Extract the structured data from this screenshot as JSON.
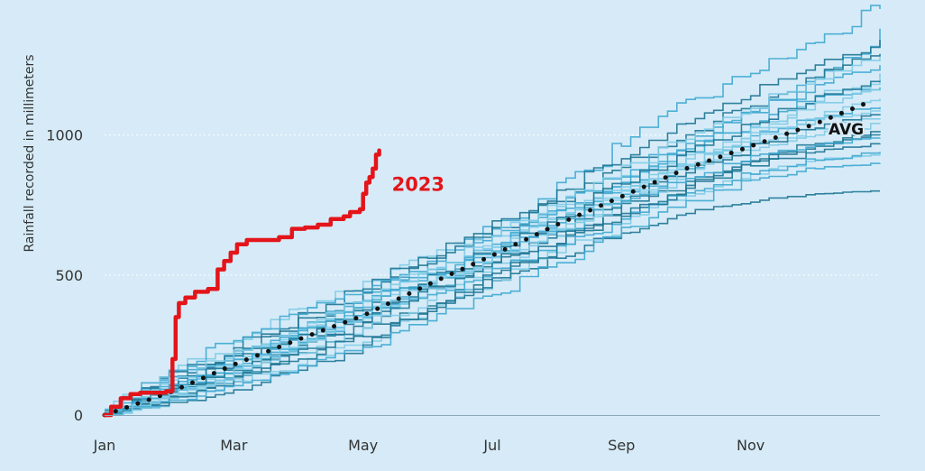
{
  "chart_data": {
    "type": "line",
    "title": "",
    "xlabel": "",
    "ylabel": "Rainfall recorded in millimeters",
    "x_ticks": [
      "Jan",
      "Mar",
      "May",
      "Jul",
      "Sep",
      "Nov"
    ],
    "x_tick_months": [
      0,
      2,
      4,
      6,
      8,
      10
    ],
    "xlim": [
      0,
      12
    ],
    "y_ticks": [
      "0",
      "500",
      "1000"
    ],
    "y_tick_values": [
      0,
      500,
      1000
    ],
    "ylim": [
      0,
      1450
    ],
    "grid": true,
    "colors": {
      "background": "#d6ebf7",
      "historical_light": "#7fcbe6",
      "historical_mid": "#3fa9d0",
      "historical_dark": "#1e7693",
      "series_2023": "#e3151a",
      "avg": "#111111"
    },
    "series": [
      {
        "name": "2023",
        "x": [
          0,
          0.1,
          0.25,
          0.4,
          0.55,
          0.75,
          0.95,
          1.05,
          1.1,
          1.15,
          1.25,
          1.4,
          1.6,
          1.75,
          1.85,
          1.95,
          2.05,
          2.2,
          2.5,
          2.7,
          2.9,
          3.1,
          3.3,
          3.5,
          3.7,
          3.8,
          3.95,
          4.0,
          4.05,
          4.1,
          4.15,
          4.2,
          4.25
        ],
        "values": [
          0,
          30,
          60,
          75,
          80,
          80,
          85,
          200,
          350,
          400,
          420,
          440,
          450,
          520,
          550,
          580,
          610,
          625,
          625,
          635,
          665,
          670,
          680,
          700,
          710,
          725,
          735,
          790,
          830,
          850,
          880,
          930,
          945
        ]
      },
      {
        "name": "AVG",
        "x": [
          0,
          1,
          2,
          3,
          4,
          5,
          6,
          7,
          8,
          9,
          10,
          11,
          11.8
        ],
        "values": [
          0,
          80,
          180,
          270,
          355,
          465,
          570,
          680,
          780,
          880,
          960,
          1040,
          1115
        ]
      }
    ],
    "historical_series": [
      {
        "x": [
          0,
          1,
          2,
          3,
          4,
          5,
          6,
          7,
          8,
          9,
          10,
          11,
          12
        ],
        "values": [
          0,
          60,
          120,
          210,
          290,
          390,
          480,
          560,
          650,
          720,
          760,
          790,
          800
        ]
      },
      {
        "x": [
          0,
          1,
          2,
          3,
          4,
          5,
          6,
          7,
          8,
          9,
          10,
          11,
          12
        ],
        "values": [
          0,
          110,
          190,
          310,
          420,
          520,
          660,
          810,
          960,
          1100,
          1220,
          1330,
          1450
        ]
      },
      {
        "x": [
          0,
          1,
          2,
          3,
          4,
          5,
          6,
          7,
          8,
          9,
          10,
          11,
          12
        ],
        "values": [
          0,
          150,
          250,
          380,
          470,
          560,
          640,
          730,
          830,
          930,
          1030,
          1120,
          1220
        ]
      },
      {
        "x": [
          0,
          1,
          2,
          3,
          4,
          5,
          6,
          7,
          8,
          9,
          10,
          11,
          12
        ],
        "values": [
          0,
          70,
          140,
          230,
          330,
          440,
          540,
          640,
          740,
          820,
          890,
          940,
          970
        ]
      },
      {
        "x": [
          0,
          1,
          2,
          3,
          4,
          5,
          6,
          7,
          8,
          9,
          10,
          11,
          12
        ],
        "values": [
          0,
          90,
          170,
          240,
          340,
          460,
          580,
          700,
          830,
          950,
          1070,
          1200,
          1380
        ]
      },
      {
        "x": [
          0,
          1,
          2,
          3,
          4,
          5,
          6,
          7,
          8,
          9,
          10,
          11,
          12
        ],
        "values": [
          0,
          50,
          110,
          180,
          260,
          360,
          470,
          580,
          680,
          780,
          860,
          910,
          930
        ]
      },
      {
        "x": [
          0,
          1,
          2,
          3,
          4,
          5,
          6,
          7,
          8,
          9,
          10,
          11,
          12
        ],
        "values": [
          0,
          130,
          230,
          330,
          430,
          540,
          640,
          760,
          880,
          990,
          1100,
          1200,
          1290
        ]
      },
      {
        "x": [
          0,
          1,
          2,
          3,
          4,
          5,
          6,
          7,
          8,
          9,
          10,
          11,
          12
        ],
        "values": [
          0,
          80,
          150,
          250,
          360,
          470,
          560,
          660,
          770,
          880,
          980,
          1060,
          1100
        ]
      },
      {
        "x": [
          0,
          1,
          2,
          3,
          4,
          5,
          6,
          7,
          8,
          9,
          10,
          11,
          12
        ],
        "values": [
          0,
          100,
          200,
          290,
          370,
          450,
          550,
          660,
          780,
          880,
          960,
          1020,
          1060
        ]
      },
      {
        "x": [
          0,
          1,
          2,
          3,
          4,
          5,
          6,
          7,
          8,
          9,
          10,
          11,
          12
        ],
        "values": [
          0,
          40,
          90,
          160,
          250,
          370,
          490,
          610,
          720,
          820,
          900,
          960,
          1000
        ]
      },
      {
        "x": [
          0,
          1,
          2,
          3,
          4,
          5,
          6,
          7,
          8,
          9,
          10,
          11,
          12
        ],
        "values": [
          0,
          120,
          220,
          310,
          400,
          500,
          610,
          720,
          830,
          940,
          1040,
          1130,
          1170
        ]
      },
      {
        "x": [
          0,
          1,
          2,
          3,
          4,
          5,
          6,
          7,
          8,
          9,
          10,
          11,
          12
        ],
        "values": [
          0,
          60,
          130,
          220,
          310,
          410,
          520,
          640,
          760,
          860,
          940,
          1000,
          1040
        ]
      },
      {
        "x": [
          0,
          1,
          2,
          3,
          4,
          5,
          6,
          7,
          8,
          9,
          10,
          11,
          12
        ],
        "values": [
          0,
          140,
          240,
          340,
          450,
          560,
          670,
          790,
          910,
          1030,
          1140,
          1250,
          1340
        ]
      },
      {
        "x": [
          0,
          1,
          2,
          3,
          4,
          5,
          6,
          7,
          8,
          9,
          10,
          11,
          12
        ],
        "values": [
          0,
          70,
          160,
          260,
          350,
          430,
          510,
          600,
          700,
          790,
          860,
          910,
          940
        ]
      },
      {
        "x": [
          0,
          1,
          2,
          3,
          4,
          5,
          6,
          7,
          8,
          9,
          10,
          11,
          12
        ],
        "values": [
          0,
          90,
          180,
          280,
          390,
          500,
          600,
          700,
          800,
          890,
          980,
          1060,
          1130
        ]
      },
      {
        "x": [
          0,
          1,
          2,
          3,
          4,
          5,
          6,
          7,
          8,
          9,
          10,
          11,
          12
        ],
        "values": [
          0,
          55,
          120,
          200,
          280,
          380,
          490,
          600,
          710,
          810,
          900,
          970,
          1010
        ]
      },
      {
        "x": [
          0,
          1,
          2,
          3,
          4,
          5,
          6,
          7,
          8,
          9,
          10,
          11,
          12
        ],
        "values": [
          0,
          160,
          260,
          360,
          440,
          520,
          620,
          730,
          850,
          970,
          1080,
          1180,
          1250
        ]
      },
      {
        "x": [
          0,
          1,
          2,
          3,
          4,
          5,
          6,
          7,
          8,
          9,
          10,
          11,
          12
        ],
        "values": [
          0,
          75,
          165,
          255,
          345,
          455,
          575,
          695,
          815,
          915,
          995,
          1055,
          1090
        ]
      },
      {
        "x": [
          0,
          1,
          2,
          3,
          4,
          5,
          6,
          7,
          8,
          9,
          10,
          11,
          12
        ],
        "values": [
          0,
          105,
          195,
          275,
          365,
          475,
          585,
          705,
          825,
          935,
          1035,
          1125,
          1190
        ]
      },
      {
        "x": [
          0,
          1,
          2,
          3,
          4,
          5,
          6,
          7,
          8,
          9,
          10,
          11,
          12
        ],
        "values": [
          0,
          45,
          100,
          170,
          240,
          330,
          430,
          540,
          650,
          750,
          830,
          880,
          900
        ]
      },
      {
        "x": [
          0,
          1,
          2,
          3,
          4,
          5,
          6,
          7,
          8,
          9,
          10,
          11,
          12
        ],
        "values": [
          0,
          125,
          215,
          305,
          405,
          515,
          625,
          745,
          865,
          985,
          1095,
          1195,
          1280
        ]
      },
      {
        "x": [
          0,
          1,
          2,
          3,
          4,
          5,
          6,
          7,
          8,
          9,
          10,
          11,
          12
        ],
        "values": [
          0,
          85,
          155,
          235,
          325,
          435,
          545,
          655,
          765,
          865,
          955,
          1025,
          1070
        ]
      },
      {
        "x": [
          0,
          1,
          2,
          3,
          4,
          5,
          6,
          7,
          8,
          9,
          10,
          11,
          12
        ],
        "values": [
          0,
          95,
          185,
          285,
          385,
          485,
          585,
          675,
          765,
          845,
          915,
          965,
          990
        ]
      },
      {
        "x": [
          0,
          1,
          2,
          3,
          4,
          5,
          6,
          7,
          8,
          9,
          10,
          11,
          12
        ],
        "values": [
          0,
          65,
          145,
          245,
          355,
          465,
          565,
          665,
          775,
          895,
          1005,
          1105,
          1160
        ]
      }
    ]
  }
}
